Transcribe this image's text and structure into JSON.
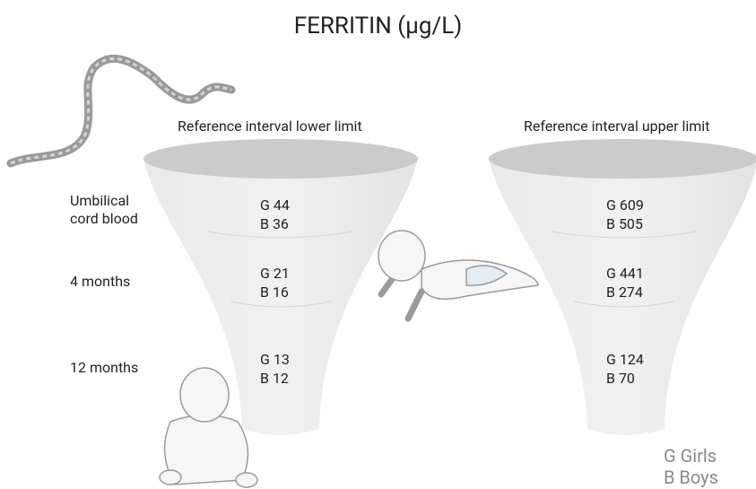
{
  "title": "FERRITIN (µg/L)",
  "row_labels": [
    "Umbilical cord blood",
    "4 months",
    "12 months"
  ],
  "funnels": [
    {
      "header": "Reference interval lower limit",
      "rows": [
        [
          "G 44",
          "B 36"
        ],
        [
          "G 21",
          "B 16"
        ],
        [
          "G 13",
          "B 12"
        ]
      ]
    },
    {
      "header": "Reference interval upper limit",
      "rows": [
        [
          "G 609",
          "B 505"
        ],
        [
          "G 441",
          "B 274"
        ],
        [
          "G 124",
          "B 70"
        ]
      ]
    }
  ],
  "legend": [
    "G Girls",
    "B Boys"
  ]
}
